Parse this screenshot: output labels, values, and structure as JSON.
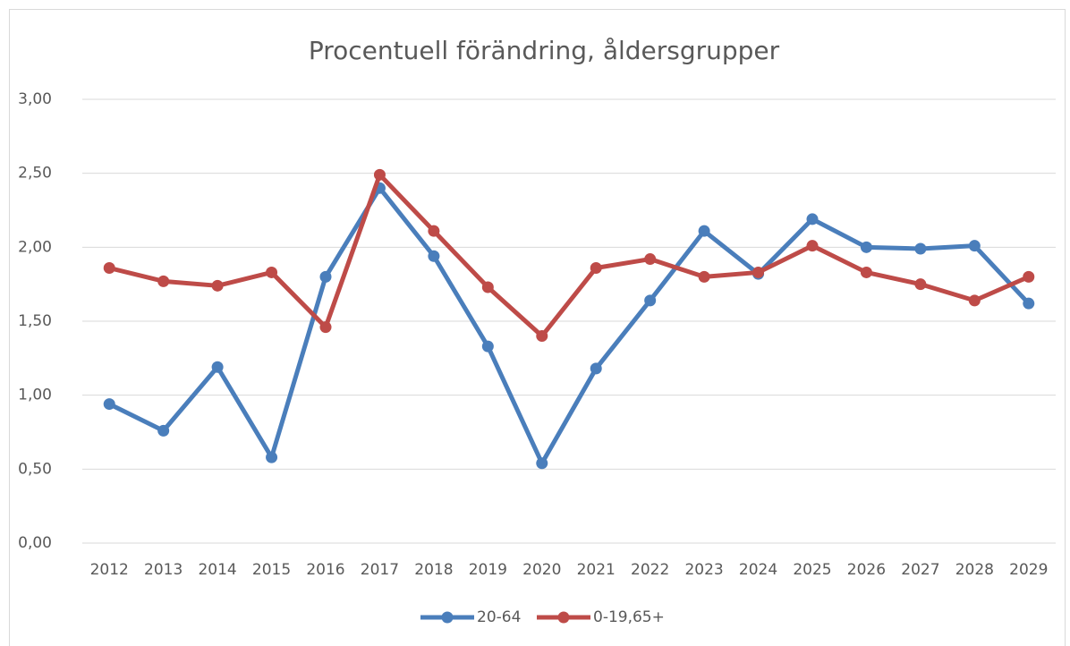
{
  "chart_data": {
    "type": "line",
    "title": "Procentuell förändring, åldersgrupper",
    "categories": [
      "2012",
      "2013",
      "2014",
      "2015",
      "2016",
      "2017",
      "2018",
      "2019",
      "2020",
      "2021",
      "2022",
      "2023",
      "2024",
      "2025",
      "2026",
      "2027",
      "2028",
      "2029"
    ],
    "series": [
      {
        "name": "20-64",
        "color": "#4a7ebb",
        "values": [
          0.94,
          0.76,
          1.19,
          0.58,
          1.8,
          2.4,
          1.94,
          1.33,
          0.54,
          1.18,
          1.64,
          2.11,
          1.82,
          2.19,
          2.0,
          1.99,
          2.01,
          1.62
        ]
      },
      {
        "name": "0-19,65+",
        "color": "#be4b48",
        "values": [
          1.86,
          1.77,
          1.74,
          1.83,
          1.46,
          2.49,
          2.11,
          1.73,
          1.4,
          1.86,
          1.92,
          1.8,
          1.83,
          2.01,
          1.83,
          1.75,
          1.64,
          1.8
        ]
      }
    ],
    "ylim": [
      0,
      3
    ],
    "yticks": [
      {
        "value": 0,
        "label": "0,00"
      },
      {
        "value": 0.5,
        "label": "0,50"
      },
      {
        "value": 1,
        "label": "1,00"
      },
      {
        "value": 1.5,
        "label": "1,50"
      },
      {
        "value": 2,
        "label": "2,00"
      },
      {
        "value": 2.5,
        "label": "2,50"
      },
      {
        "value": 3,
        "label": "3,00"
      }
    ],
    "grid": true,
    "legend": "bottom"
  }
}
